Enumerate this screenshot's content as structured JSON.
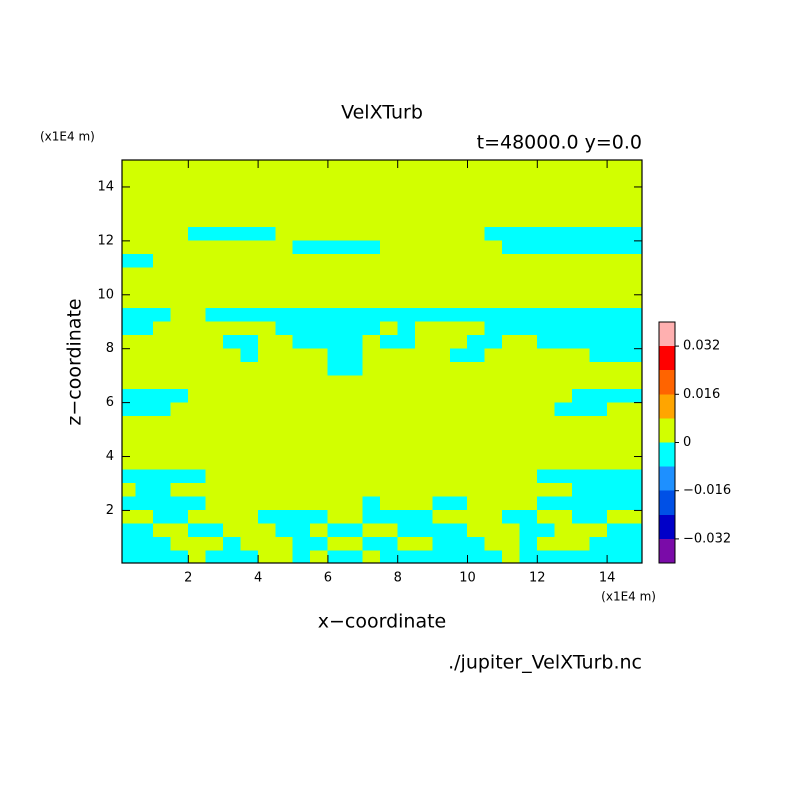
{
  "chart_data": {
    "type": "contour",
    "title": "VelXTurb",
    "subtitle": "t=48000.0 y=0.0",
    "x_unit": "(x1E4 m)",
    "y_unit": "(x1E4 m)",
    "xlabel": "x−coordinate",
    "ylabel": "z−coordinate",
    "source": "./jupiter_VelXTurb.nc",
    "xlim": [
      0.1,
      15
    ],
    "ylim": [
      0.05,
      15
    ],
    "xticks": [
      2,
      4,
      6,
      8,
      10,
      12,
      14
    ],
    "yticks": [
      2,
      4,
      6,
      8,
      10,
      12,
      14
    ],
    "colorbar": {
      "levels": [
        -0.04,
        -0.032,
        -0.024,
        -0.016,
        -0.008,
        0,
        0.008,
        0.016,
        0.024,
        0.032,
        0.04
      ],
      "colors": [
        "#7a0ba8",
        "#0000c8",
        "#0050e6",
        "#1e90ff",
        "#00ffff",
        "#d2ff00",
        "#ffa500",
        "#ff6400",
        "#ff0000",
        "#ffb0b0"
      ],
      "ticks": [
        {
          "value": -0.032,
          "label": "−0.032"
        },
        {
          "value": -0.016,
          "label": "−0.016"
        },
        0,
        0.016,
        0.032
      ]
    },
    "x": [
      0.25,
      0.75,
      1.25,
      1.75,
      2.25,
      2.75,
      3.25,
      3.75,
      4.25,
      4.75,
      5.25,
      5.75,
      6.25,
      6.75,
      7.25,
      7.75,
      8.25,
      8.75,
      9.25,
      9.75,
      10.25,
      10.75,
      11.25,
      11.75,
      12.25,
      12.75,
      13.25,
      13.75,
      14.25,
      14.75
    ],
    "y": [
      14.75,
      14.25,
      13.75,
      13.25,
      12.75,
      12.25,
      11.75,
      11.25,
      10.75,
      10.25,
      9.75,
      9.25,
      8.75,
      8.25,
      7.75,
      7.25,
      6.75,
      6.25,
      5.75,
      5.25,
      4.75,
      4.25,
      3.75,
      3.25,
      2.75,
      2.25,
      1.75,
      1.25,
      0.75,
      0.25
    ],
    "z": [
      [
        0.004,
        0.004,
        0.004,
        0.004,
        0.004,
        0.004,
        0.004,
        0.004,
        0.004,
        0.004,
        0.004,
        0.004,
        0.004,
        0.004,
        0.004,
        0.004,
        0.004,
        0.004,
        0.004,
        0.004,
        0.004,
        0.004,
        0.004,
        0.004,
        0.004,
        0.004,
        0.004,
        0.004,
        0.004,
        0.004
      ],
      [
        0.004,
        0.004,
        0.004,
        0.004,
        0.004,
        0.004,
        0.004,
        0.004,
        0.004,
        0.004,
        0.004,
        0.004,
        0.004,
        0.004,
        0.004,
        0.004,
        0.004,
        0.004,
        0.004,
        0.004,
        0.004,
        0.004,
        0.004,
        0.004,
        0.004,
        0.004,
        0.004,
        0.004,
        0.004,
        0.004
      ],
      [
        0.004,
        0.004,
        0.004,
        0.004,
        0.004,
        0.004,
        0.004,
        0.004,
        0.004,
        0.004,
        0.004,
        0.004,
        0.004,
        0.004,
        0.004,
        0.004,
        0.004,
        0.004,
        0.004,
        0.004,
        0.004,
        0.004,
        0.004,
        0.004,
        0.004,
        0.004,
        0.004,
        0.004,
        0.004,
        0.004
      ],
      [
        0.004,
        0.004,
        0.004,
        0.004,
        0.004,
        0.004,
        0.004,
        0.004,
        0.004,
        0.004,
        0.004,
        0.004,
        0.004,
        0.004,
        0.004,
        0.004,
        0.004,
        0.004,
        0.004,
        0.004,
        0.004,
        0.004,
        0.004,
        0.004,
        0.004,
        0.004,
        0.004,
        0.004,
        0.004,
        0.004
      ],
      [
        0.004,
        0.004,
        0.004,
        0.004,
        0.004,
        0.004,
        0.004,
        0.004,
        0.004,
        0.004,
        0.004,
        0.004,
        0.004,
        0.004,
        0.004,
        0.004,
        0.004,
        0.004,
        0.004,
        0.004,
        0.004,
        0.004,
        0.004,
        0.004,
        0.004,
        0.004,
        0.004,
        0.004,
        0.004,
        0.004
      ],
      [
        0.004,
        0.004,
        0.004,
        0.004,
        -0.004,
        -0.004,
        -0.004,
        -0.004,
        -0.004,
        0.004,
        0.004,
        0.004,
        0.004,
        0.004,
        0.004,
        0.004,
        0.004,
        0.004,
        0.004,
        0.004,
        0.004,
        -0.004,
        -0.004,
        -0.004,
        -0.004,
        -0.004,
        -0.004,
        -0.004,
        -0.004,
        -0.004
      ],
      [
        0.004,
        0.004,
        0.004,
        0.004,
        0.004,
        0.004,
        0.004,
        0.004,
        0.004,
        0.004,
        -0.004,
        -0.004,
        -0.004,
        -0.004,
        -0.004,
        0.004,
        0.004,
        0.004,
        0.004,
        0.004,
        0.004,
        0.004,
        -0.004,
        -0.004,
        -0.004,
        -0.004,
        -0.004,
        -0.004,
        -0.004,
        -0.004
      ],
      [
        -0.004,
        -0.004,
        0.004,
        0.004,
        0.004,
        0.004,
        0.004,
        0.004,
        0.004,
        0.004,
        0.004,
        0.004,
        0.004,
        0.004,
        0.004,
        0.004,
        0.004,
        0.004,
        0.004,
        0.004,
        0.004,
        0.004,
        0.004,
        0.004,
        0.004,
        0.004,
        0.004,
        0.004,
        0.004,
        0.004
      ],
      [
        0.004,
        0.004,
        0.004,
        0.004,
        0.004,
        0.004,
        0.004,
        0.004,
        0.004,
        0.004,
        0.004,
        0.004,
        0.004,
        0.004,
        0.004,
        0.004,
        0.004,
        0.004,
        0.004,
        0.004,
        0.004,
        0.004,
        0.004,
        0.004,
        0.004,
        0.004,
        0.004,
        0.004,
        0.004,
        0.004
      ],
      [
        0.004,
        0.004,
        0.004,
        0.004,
        0.004,
        0.004,
        0.004,
        0.004,
        0.004,
        0.004,
        0.004,
        0.004,
        0.004,
        0.004,
        0.004,
        0.004,
        0.004,
        0.004,
        0.004,
        0.004,
        0.004,
        0.004,
        0.004,
        0.004,
        0.004,
        0.004,
        0.004,
        0.004,
        0.004,
        0.004
      ],
      [
        0.004,
        0.004,
        0.004,
        0.004,
        0.004,
        0.004,
        0.004,
        0.004,
        0.004,
        0.004,
        0.004,
        0.004,
        0.004,
        0.004,
        0.004,
        0.004,
        0.004,
        0.004,
        0.004,
        0.004,
        0.004,
        0.004,
        0.004,
        0.004,
        0.004,
        0.004,
        0.004,
        0.004,
        0.004,
        0.004
      ],
      [
        -0.004,
        -0.004,
        -0.004,
        0.004,
        0.004,
        -0.004,
        -0.004,
        -0.004,
        -0.004,
        -0.004,
        -0.004,
        -0.004,
        -0.004,
        -0.004,
        -0.004,
        -0.004,
        -0.004,
        -0.004,
        -0.004,
        -0.004,
        -0.004,
        -0.004,
        -0.004,
        -0.004,
        -0.004,
        -0.004,
        -0.004,
        -0.004,
        -0.004,
        -0.004
      ],
      [
        -0.004,
        -0.004,
        0.004,
        0.004,
        0.004,
        0.004,
        0.004,
        0.004,
        0.004,
        -0.004,
        -0.004,
        -0.004,
        -0.004,
        -0.004,
        -0.004,
        0.004,
        -0.004,
        0.004,
        0.004,
        0.004,
        0.004,
        -0.004,
        -0.004,
        -0.004,
        -0.004,
        -0.004,
        -0.004,
        -0.004,
        -0.004,
        -0.004
      ],
      [
        0.004,
        0.004,
        0.004,
        0.004,
        0.004,
        0.004,
        -0.004,
        -0.004,
        0.004,
        0.004,
        -0.004,
        -0.004,
        -0.004,
        -0.004,
        0.004,
        -0.004,
        -0.004,
        0.004,
        0.004,
        0.004,
        -0.004,
        -0.004,
        0.004,
        0.004,
        -0.004,
        -0.004,
        -0.004,
        -0.004,
        -0.004,
        -0.004
      ],
      [
        0.004,
        0.004,
        0.004,
        0.004,
        0.004,
        0.004,
        0.004,
        -0.004,
        0.004,
        0.004,
        0.004,
        0.004,
        -0.004,
        -0.004,
        0.004,
        0.004,
        0.004,
        0.004,
        0.004,
        -0.004,
        -0.004,
        0.004,
        0.004,
        0.004,
        0.004,
        0.004,
        0.004,
        -0.004,
        -0.004,
        -0.004
      ],
      [
        0.004,
        0.004,
        0.004,
        0.004,
        0.004,
        0.004,
        0.004,
        0.004,
        0.004,
        0.004,
        0.004,
        0.004,
        -0.004,
        -0.004,
        0.004,
        0.004,
        0.004,
        0.004,
        0.004,
        0.004,
        0.004,
        0.004,
        0.004,
        0.004,
        0.004,
        0.004,
        0.004,
        0.004,
        0.004,
        0.004
      ],
      [
        0.004,
        0.004,
        0.004,
        0.004,
        0.004,
        0.004,
        0.004,
        0.004,
        0.004,
        0.004,
        0.004,
        0.004,
        0.004,
        0.004,
        0.004,
        0.004,
        0.004,
        0.004,
        0.004,
        0.004,
        0.004,
        0.004,
        0.004,
        0.004,
        0.004,
        0.004,
        0.004,
        0.004,
        0.004,
        0.004
      ],
      [
        -0.004,
        -0.004,
        -0.004,
        -0.004,
        0.004,
        0.004,
        0.004,
        0.004,
        0.004,
        0.004,
        0.004,
        0.004,
        0.004,
        0.004,
        0.004,
        0.004,
        0.004,
        0.004,
        0.004,
        0.004,
        0.004,
        0.004,
        0.004,
        0.004,
        0.004,
        0.004,
        -0.004,
        -0.004,
        -0.004,
        -0.004
      ],
      [
        -0.004,
        -0.004,
        -0.004,
        0.004,
        0.004,
        0.004,
        0.004,
        0.004,
        0.004,
        0.004,
        0.004,
        0.004,
        0.004,
        0.004,
        0.004,
        0.004,
        0.004,
        0.004,
        0.004,
        0.004,
        0.004,
        0.004,
        0.004,
        0.004,
        0.004,
        -0.004,
        -0.004,
        -0.004,
        0.004,
        0.004
      ],
      [
        0.004,
        0.004,
        0.004,
        0.004,
        0.004,
        0.004,
        0.004,
        0.004,
        0.004,
        0.004,
        0.004,
        0.004,
        0.004,
        0.004,
        0.004,
        0.004,
        0.004,
        0.004,
        0.004,
        0.004,
        0.004,
        0.004,
        0.004,
        0.004,
        0.004,
        0.004,
        0.004,
        0.004,
        0.004,
        0.004
      ],
      [
        0.004,
        0.004,
        0.004,
        0.004,
        0.004,
        0.004,
        0.004,
        0.004,
        0.004,
        0.004,
        0.004,
        0.004,
        0.004,
        0.004,
        0.004,
        0.004,
        0.004,
        0.004,
        0.004,
        0.004,
        0.004,
        0.004,
        0.004,
        0.004,
        0.004,
        0.004,
        0.004,
        0.004,
        0.004,
        0.004
      ],
      [
        0.004,
        0.004,
        0.004,
        0.004,
        0.004,
        0.004,
        0.004,
        0.004,
        0.004,
        0.004,
        0.004,
        0.004,
        0.004,
        0.004,
        0.004,
        0.004,
        0.004,
        0.004,
        0.004,
        0.004,
        0.004,
        0.004,
        0.004,
        0.004,
        0.004,
        0.004,
        0.004,
        0.004,
        0.004,
        0.004
      ],
      [
        0.004,
        0.004,
        0.004,
        0.004,
        0.004,
        0.004,
        0.004,
        0.004,
        0.004,
        0.004,
        0.004,
        0.004,
        0.004,
        0.004,
        0.004,
        0.004,
        0.004,
        0.004,
        0.004,
        0.004,
        0.004,
        0.004,
        0.004,
        0.004,
        0.004,
        0.004,
        0.004,
        0.004,
        0.004,
        0.004
      ],
      [
        -0.004,
        -0.004,
        -0.004,
        -0.004,
        -0.004,
        0.004,
        0.004,
        0.004,
        0.004,
        0.004,
        0.004,
        0.004,
        0.004,
        0.004,
        0.004,
        0.004,
        0.004,
        0.004,
        0.004,
        0.004,
        0.004,
        0.004,
        0.004,
        0.004,
        -0.004,
        -0.004,
        -0.004,
        -0.004,
        -0.004,
        -0.004
      ],
      [
        0.004,
        -0.004,
        -0.004,
        0.004,
        0.004,
        0.004,
        0.004,
        0.004,
        0.004,
        0.004,
        0.004,
        0.004,
        0.004,
        0.004,
        0.004,
        0.004,
        0.004,
        0.004,
        0.004,
        0.004,
        0.004,
        0.004,
        0.004,
        0.004,
        0.004,
        0.004,
        -0.004,
        -0.004,
        -0.004,
        -0.004
      ],
      [
        -0.004,
        -0.004,
        -0.004,
        -0.004,
        -0.004,
        0.004,
        0.004,
        0.004,
        0.004,
        0.004,
        0.004,
        0.004,
        0.004,
        0.004,
        -0.004,
        0.004,
        0.004,
        0.004,
        -0.004,
        -0.004,
        0.004,
        0.004,
        0.004,
        0.004,
        -0.004,
        -0.004,
        -0.004,
        -0.004,
        -0.004,
        -0.004
      ],
      [
        0.004,
        0.004,
        -0.004,
        -0.004,
        0.004,
        0.004,
        0.004,
        0.004,
        -0.004,
        -0.004,
        -0.004,
        -0.004,
        0.004,
        0.004,
        -0.004,
        -0.004,
        -0.004,
        -0.004,
        0.004,
        0.004,
        0.004,
        0.004,
        -0.004,
        -0.004,
        0.004,
        0.004,
        -0.004,
        -0.004,
        0.004,
        0.004
      ],
      [
        -0.004,
        -0.004,
        0.004,
        0.004,
        -0.004,
        -0.004,
        0.004,
        0.004,
        0.004,
        -0.004,
        -0.004,
        0.004,
        -0.004,
        -0.004,
        0.004,
        0.004,
        -0.004,
        -0.004,
        -0.004,
        -0.004,
        0.004,
        0.004,
        0.004,
        -0.004,
        -0.004,
        0.004,
        0.004,
        0.004,
        -0.004,
        -0.004
      ],
      [
        -0.004,
        -0.004,
        -0.004,
        0.004,
        0.004,
        0.004,
        -0.004,
        0.004,
        0.004,
        0.004,
        -0.004,
        -0.004,
        0.004,
        0.004,
        -0.004,
        -0.004,
        0.004,
        0.004,
        -0.004,
        -0.004,
        -0.004,
        0.004,
        0.004,
        -0.004,
        0.004,
        0.004,
        0.004,
        -0.004,
        -0.004,
        -0.004
      ],
      [
        -0.004,
        -0.004,
        -0.004,
        -0.004,
        0.004,
        -0.004,
        -0.004,
        -0.004,
        0.004,
        0.004,
        -0.004,
        0.004,
        -0.004,
        -0.004,
        0.004,
        -0.004,
        -0.004,
        -0.004,
        -0.004,
        -0.004,
        -0.004,
        -0.004,
        0.004,
        -0.004,
        -0.004,
        -0.004,
        -0.004,
        -0.004,
        -0.004,
        -0.004
      ]
    ]
  }
}
